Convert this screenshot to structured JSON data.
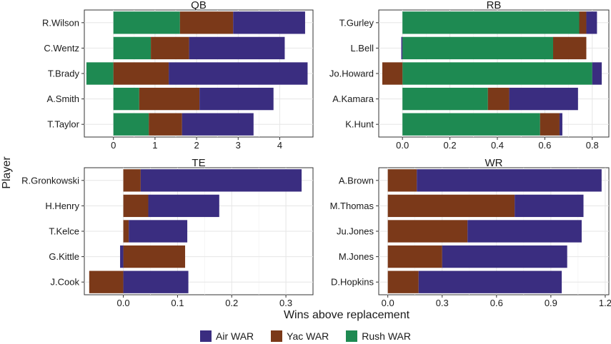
{
  "chart_data": {
    "type": "bar",
    "orientation": "horizontal",
    "stacked": true,
    "xlabel": "Wins above replacement",
    "ylabel": "Player",
    "legend": [
      {
        "name": "Air WAR",
        "color": "#3a2d80"
      },
      {
        "name": "Yac WAR",
        "color": "#7b3919"
      },
      {
        "name": "Rush WAR",
        "color": "#1e8a52"
      }
    ],
    "panels": [
      {
        "title": "QB",
        "players": [
          "R.Wilson",
          "C.Wentz",
          "T.Brady",
          "A.Smith",
          "T.Taylor"
        ],
        "series": [
          {
            "name": "Rush WAR",
            "values": [
              1.6,
              0.9,
              -0.65,
              0.62,
              0.85
            ]
          },
          {
            "name": "Yac WAR",
            "values": [
              1.28,
              0.92,
              1.33,
              1.45,
              0.8
            ]
          },
          {
            "name": "Air WAR",
            "values": [
              1.73,
              2.3,
              3.34,
              1.78,
              1.72
            ]
          }
        ],
        "xlim": [
          -0.7,
          4.8
        ],
        "ticks": [
          0,
          1,
          2,
          3,
          4
        ],
        "tick_labels": [
          "0",
          "1",
          "2",
          "3",
          "4"
        ]
      },
      {
        "title": "RB",
        "players": [
          "T.Gurley",
          "L.Bell",
          "Jo.Howard",
          "A.Kamara",
          "K.Hunt"
        ],
        "series": [
          {
            "name": "Rush WAR",
            "values": [
              0.745,
              0.635,
              0.8,
              0.36,
              0.58
            ]
          },
          {
            "name": "Yac WAR",
            "values": [
              0.03,
              0.14,
              -0.085,
              0.09,
              0.082
            ]
          },
          {
            "name": "Air WAR",
            "values": [
              0.045,
              -0.005,
              0.04,
              0.29,
              0.012
            ]
          }
        ],
        "xlim": [
          -0.1,
          0.87
        ],
        "ticks": [
          0,
          0.2,
          0.4,
          0.6,
          0.8
        ],
        "tick_labels": [
          "0.0",
          "0.2",
          "0.4",
          "0.6",
          "0.8"
        ]
      },
      {
        "title": "TE",
        "players": [
          "R.Gronkowski",
          "H.Henry",
          "T.Kelce",
          "G.Kittle",
          "J.Cook"
        ],
        "series": [
          {
            "name": "Rush WAR",
            "values": [
              0,
              0,
              0,
              0,
              0
            ]
          },
          {
            "name": "Yac WAR",
            "values": [
              0.032,
              0.046,
              0.01,
              0.114,
              -0.063
            ]
          },
          {
            "name": "Air WAR",
            "values": [
              0.297,
              0.131,
              0.108,
              -0.006,
              0.12
            ]
          }
        ],
        "xlim": [
          -0.072,
          0.35
        ],
        "ticks": [
          0,
          0.1,
          0.2,
          0.3
        ],
        "tick_labels": [
          "0.0",
          "0.1",
          "0.2",
          "0.3"
        ]
      },
      {
        "title": "WR",
        "players": [
          "A.Brown",
          "M.Thomas",
          "Ju.Jones",
          "M.Jones",
          "D.Hopkins"
        ],
        "series": [
          {
            "name": "Rush WAR",
            "values": [
              0,
              0,
              0,
              0,
              0
            ]
          },
          {
            "name": "Yac WAR",
            "values": [
              0.16,
              0.7,
              0.44,
              0.3,
              0.17
            ]
          },
          {
            "name": "Air WAR",
            "values": [
              1.02,
              0.38,
              0.63,
              0.69,
              0.79
            ]
          }
        ],
        "xlim": [
          -0.05,
          1.22
        ],
        "ticks": [
          0,
          0.3,
          0.6,
          0.9,
          1.2
        ],
        "tick_labels": [
          "0.0",
          "0.3",
          "0.6",
          "0.9",
          "1.2"
        ]
      }
    ]
  }
}
